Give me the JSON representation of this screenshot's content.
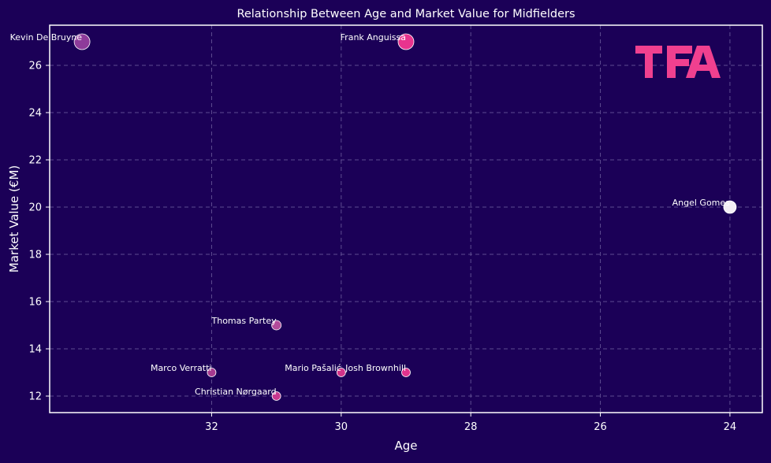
{
  "chart_data": {
    "type": "scatter",
    "title": "Relationship Between Age and Market Value for Midfielders",
    "xlabel": "Age",
    "ylabel": "Market Value (€M)",
    "x_inverted": true,
    "xlim": [
      34.5,
      23.5
    ],
    "ylim": [
      11.3,
      27.7
    ],
    "x_ticks": [
      32,
      30,
      28,
      26,
      24
    ],
    "y_ticks": [
      12,
      14,
      16,
      18,
      20,
      22,
      24,
      26
    ],
    "grid": true,
    "logo_text": "TFA",
    "colors": {
      "background": "#1b0057",
      "frame": "#ffffff",
      "logo": "#f0408f"
    },
    "points": [
      {
        "label": "Kevin De Bruyne",
        "x": 34,
        "y": 27,
        "color": "#8e3b9a",
        "size": 10
      },
      {
        "label": "Frank Anguissa",
        "x": 29,
        "y": 27,
        "color": "#e8338e",
        "size": 10
      },
      {
        "label": "Angel Gomes",
        "x": 24,
        "y": 20,
        "color": "#f2eef4",
        "size": 8
      },
      {
        "label": "Thomas Partey",
        "x": 31,
        "y": 15,
        "color": "#b24a9a",
        "size": 6
      },
      {
        "label": "Marco Verratti",
        "x": 32,
        "y": 13,
        "color": "#a63a90",
        "size": 5.5
      },
      {
        "label": "Mario Pašalić",
        "x": 30,
        "y": 13,
        "color": "#d2338a",
        "size": 5.5
      },
      {
        "label": "Josh Brownhill",
        "x": 29,
        "y": 13,
        "color": "#e0338d",
        "size": 5.5
      },
      {
        "label": "Christian Nørgaard",
        "x": 31,
        "y": 12,
        "color": "#c8388f",
        "size": 5.5
      }
    ]
  }
}
